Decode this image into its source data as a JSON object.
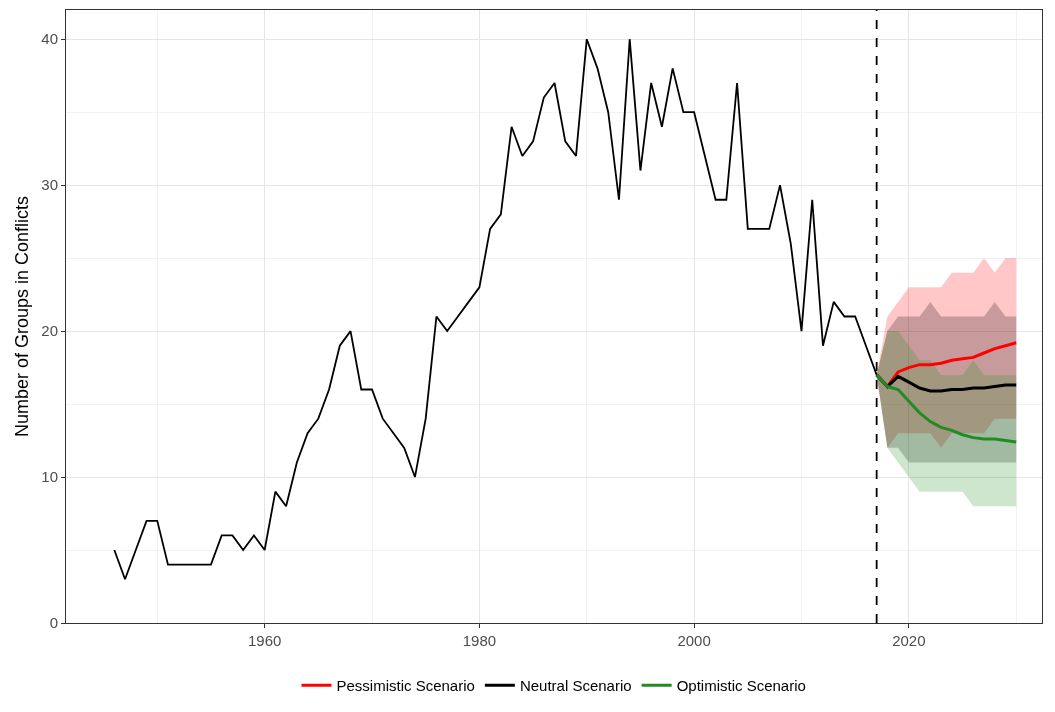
{
  "chart_data": {
    "type": "line",
    "ylabel": "Number of Groups in Conflicts",
    "xlim": [
      1941.5,
      2032.4
    ],
    "xticks": [
      1960,
      1980,
      2000,
      2020
    ],
    "ylim": [
      0,
      42
    ],
    "yticks": [
      0,
      10,
      20,
      30,
      40
    ],
    "grid": true,
    "legend": "bottom",
    "line_style": "solid",
    "ref_lines": [
      {
        "axis": "x",
        "value": 2017,
        "line_style": "dashed",
        "color": "#000000"
      }
    ],
    "series": [
      {
        "color": "#000000",
        "x": [
          1946,
          1947,
          1948,
          1949,
          1950,
          1951,
          1952,
          1953,
          1954,
          1955,
          1956,
          1957,
          1958,
          1959,
          1960,
          1961,
          1962,
          1963,
          1964,
          1965,
          1966,
          1967,
          1968,
          1969,
          1970,
          1971,
          1972,
          1973,
          1974,
          1975,
          1976,
          1977,
          1978,
          1979,
          1980,
          1981,
          1982,
          1983,
          1984,
          1985,
          1986,
          1987,
          1988,
          1989,
          1990,
          1991,
          1992,
          1993,
          1994,
          1995,
          1996,
          1997,
          1998,
          1999,
          2000,
          2001,
          2002,
          2003,
          2004,
          2005,
          2006,
          2007,
          2008,
          2009,
          2010,
          2011,
          2012,
          2013,
          2014,
          2015,
          2016,
          2017
        ],
        "values": [
          5,
          3,
          5,
          7,
          7,
          4,
          4,
          4,
          4,
          4,
          6,
          6,
          5,
          6,
          5,
          9,
          8,
          11,
          13,
          14,
          16,
          19,
          20,
          16,
          16,
          14,
          13,
          12,
          10,
          14,
          21,
          20,
          21,
          22,
          23,
          27,
          28,
          34,
          32,
          33,
          36,
          37,
          33,
          32,
          40,
          38,
          35,
          29,
          40,
          31,
          37,
          34,
          38,
          35,
          35,
          32,
          29,
          29,
          37,
          27,
          27,
          27,
          30,
          26,
          20,
          29,
          19,
          22,
          21,
          21,
          19,
          17
        ]
      },
      {
        "name": "Pessimistic Scenario",
        "color": "#ff0000",
        "x": [
          2017,
          2018,
          2019,
          2020,
          2021,
          2022,
          2023,
          2024,
          2025,
          2026,
          2027,
          2028,
          2029,
          2030
        ],
        "values": [
          17,
          16.2,
          17.2,
          17.5,
          17.7,
          17.7,
          17.8,
          18.0,
          18.1,
          18.2,
          18.5,
          18.8,
          19.0,
          19.2
        ],
        "lower": [
          17,
          12,
          13,
          13,
          13,
          13,
          12,
          13,
          13,
          13,
          13,
          14,
          14,
          14
        ],
        "upper": [
          17,
          21,
          22,
          23,
          23,
          23,
          23,
          24,
          24,
          24,
          25,
          24,
          25,
          25
        ]
      },
      {
        "name": "Neutral Scenario",
        "color": "#000000",
        "x": [
          2017,
          2018,
          2019,
          2020,
          2021,
          2022,
          2023,
          2024,
          2025,
          2026,
          2027,
          2028,
          2029,
          2030
        ],
        "values": [
          17,
          16.2,
          16.9,
          16.5,
          16.1,
          15.9,
          15.9,
          16.0,
          16.0,
          16.1,
          16.1,
          16.2,
          16.3,
          16.3
        ],
        "lower": [
          17,
          12,
          12,
          11,
          11,
          11,
          11,
          11,
          11,
          11,
          11,
          11,
          11,
          11
        ],
        "upper": [
          17,
          20,
          21,
          21,
          21,
          22,
          21,
          21,
          21,
          21,
          21,
          22,
          21,
          21
        ]
      },
      {
        "name": "Optimistic Scenario",
        "color": "#228b22",
        "x": [
          2017,
          2018,
          2019,
          2020,
          2021,
          2022,
          2023,
          2024,
          2025,
          2026,
          2027,
          2028,
          2029,
          2030
        ],
        "values": [
          17,
          16.2,
          16.0,
          15.2,
          14.4,
          13.8,
          13.4,
          13.2,
          12.9,
          12.7,
          12.6,
          12.6,
          12.5,
          12.4
        ],
        "lower": [
          17,
          12,
          11,
          10,
          9,
          9,
          9,
          9,
          9,
          8,
          8,
          8,
          8,
          8
        ],
        "upper": [
          17,
          20,
          20,
          19,
          18,
          18,
          17,
          17,
          17,
          18,
          17,
          17,
          17,
          17
        ]
      }
    ]
  }
}
